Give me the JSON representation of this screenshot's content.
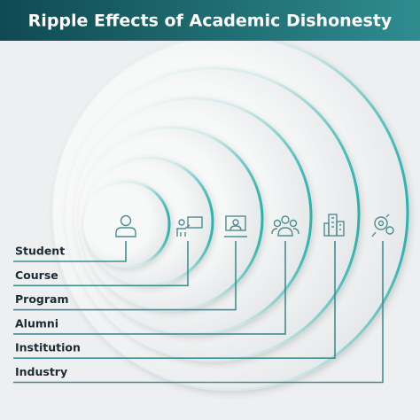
{
  "header": {
    "title": "Ripple Effects of Academic Dishonesty"
  },
  "levels": [
    "Student",
    "Course",
    "Program",
    "Alumni",
    "Institution",
    "Industry"
  ]
}
